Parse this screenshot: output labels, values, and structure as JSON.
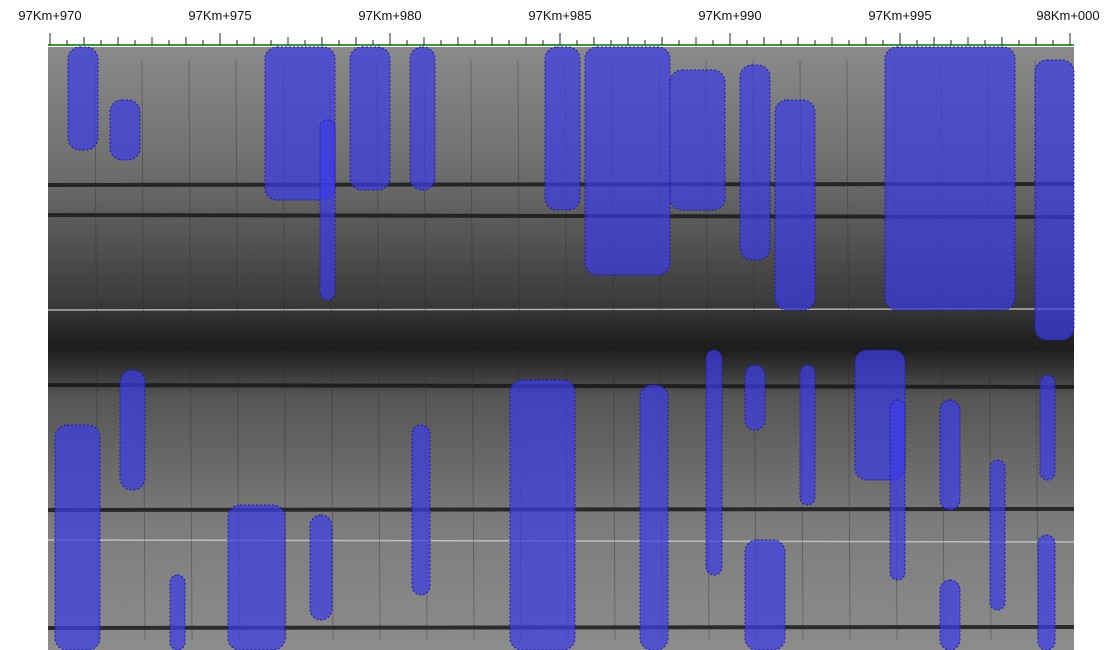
{
  "ruler": {
    "labels": [
      "97Km+970",
      "97Km+975",
      "97Km+980",
      "97Km+985",
      "97Km+990",
      "97Km+995",
      "98Km+000"
    ]
  }
}
